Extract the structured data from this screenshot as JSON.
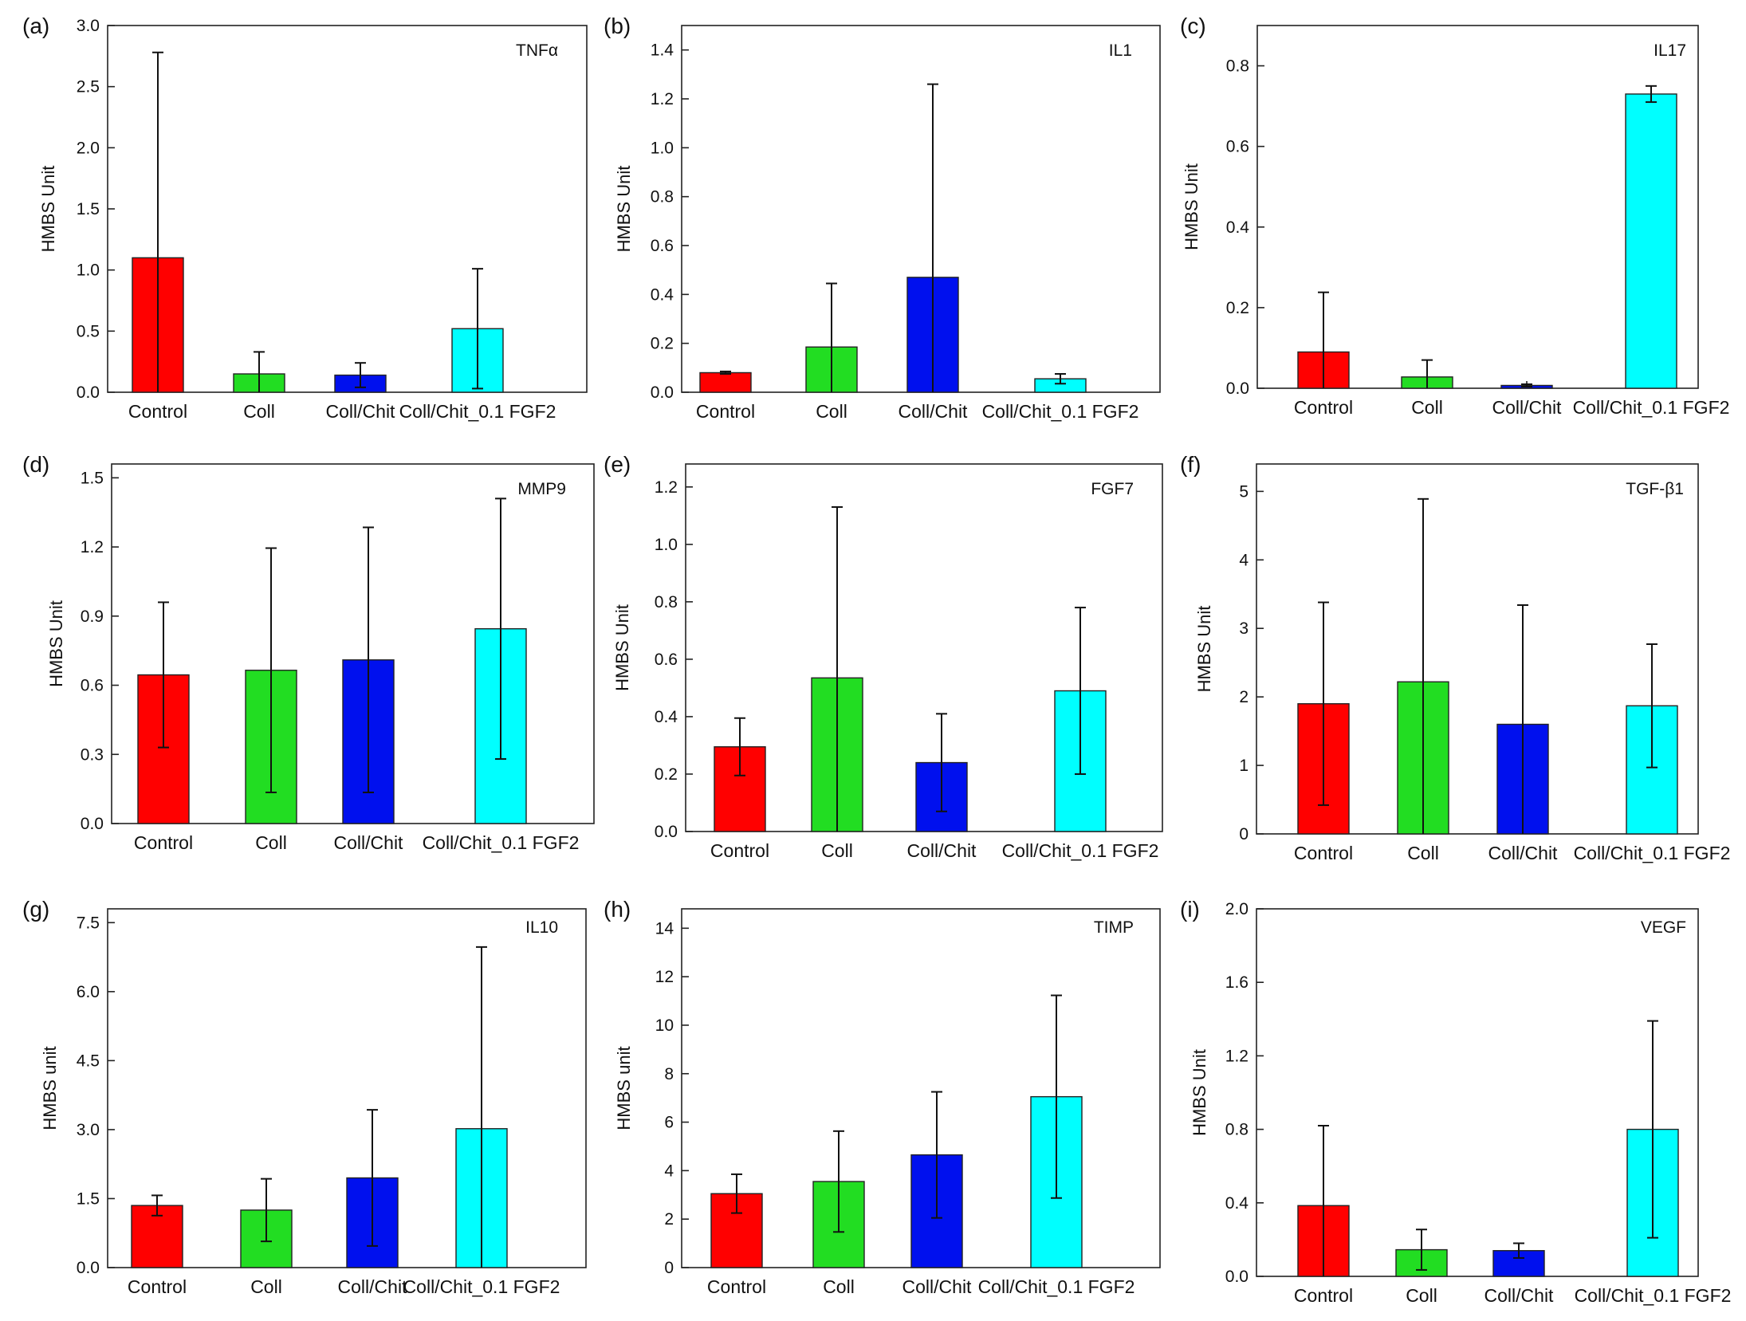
{
  "figure": {
    "categories": [
      "Control",
      "Coll",
      "Coll/Chit",
      "Coll/Chit_0.1 FGF2"
    ],
    "colors": [
      "#ff0000",
      "#22dd22",
      "#0010ee",
      "#00ffff"
    ]
  },
  "chart_data": [
    {
      "type": "bar",
      "letter": "(a)",
      "title": "TNFα",
      "ylabel": "HMBS Unit",
      "ylim": [
        0,
        3.0
      ],
      "ticks": [
        "0.0",
        "0.5",
        "1.0",
        "1.5",
        "2.0",
        "2.5",
        "3.0"
      ],
      "values": [
        1.1,
        0.15,
        0.14,
        0.52
      ],
      "errors": [
        1.68,
        0.18,
        0.1,
        0.49
      ]
    },
    {
      "type": "bar",
      "letter": "(b)",
      "title": "IL1",
      "ylabel": "HMBS Unit",
      "ylim": [
        0,
        1.5
      ],
      "ticks": [
        "0.0",
        "0.2",
        "0.4",
        "0.6",
        "0.8",
        "1.0",
        "1.2",
        "1.4"
      ],
      "values": [
        0.08,
        0.185,
        0.47,
        0.055
      ],
      "errors": [
        0.005,
        0.26,
        0.79,
        0.02
      ]
    },
    {
      "type": "bar",
      "letter": "(c)",
      "title": "IL17",
      "ylabel": "HMBS Unit",
      "ylim": [
        0,
        0.9
      ],
      "ticks": [
        "0.0",
        "0.2",
        "0.4",
        "0.6",
        "0.8"
      ],
      "values": [
        0.09,
        0.028,
        0.007,
        0.73
      ],
      "errors": [
        0.148,
        0.042,
        0.003,
        0.02
      ]
    },
    {
      "type": "bar",
      "letter": "(d)",
      "title": "MMP9",
      "ylabel": "HMBS Unit",
      "ylim": [
        0,
        1.56
      ],
      "ticks": [
        "0.0",
        "0.3",
        "0.6",
        "0.9",
        "1.2",
        "1.5"
      ],
      "values": [
        0.645,
        0.665,
        0.71,
        0.845
      ],
      "errors": [
        0.315,
        0.53,
        0.575,
        0.565
      ]
    },
    {
      "type": "bar",
      "letter": "(e)",
      "title": "FGF7",
      "ylabel": "HMBS Unit",
      "ylim": [
        0,
        1.28
      ],
      "ticks": [
        "0.0",
        "0.2",
        "0.4",
        "0.6",
        "0.8",
        "1.0",
        "1.2"
      ],
      "values": [
        0.295,
        0.535,
        0.24,
        0.49
      ],
      "errors": [
        0.1,
        0.595,
        0.17,
        0.29
      ]
    },
    {
      "type": "bar",
      "letter": "(f)",
      "title": "TGF-β1",
      "ylabel": "HMBS Unit",
      "ylim": [
        0,
        5.4
      ],
      "ticks": [
        "0",
        "1",
        "2",
        "3",
        "4",
        "5"
      ],
      "values": [
        1.9,
        2.22,
        1.6,
        1.87
      ],
      "errors": [
        1.48,
        2.67,
        1.74,
        0.9
      ]
    },
    {
      "type": "bar",
      "letter": "(g)",
      "title": "IL10",
      "ylabel": "HMBS unit",
      "ylim": [
        0,
        7.8
      ],
      "ticks": [
        "0.0",
        "1.5",
        "3.0",
        "4.5",
        "6.0",
        "7.5"
      ],
      "values": [
        1.35,
        1.25,
        1.95,
        3.02
      ],
      "errors": [
        0.22,
        0.68,
        1.48,
        3.95
      ]
    },
    {
      "type": "bar",
      "letter": "(h)",
      "title": "TIMP",
      "ylabel": "HMBS unit",
      "ylim": [
        0,
        14.8
      ],
      "ticks": [
        "0",
        "2",
        "4",
        "6",
        "8",
        "10",
        "12",
        "14"
      ],
      "values": [
        3.05,
        3.55,
        4.65,
        7.05
      ],
      "errors": [
        0.8,
        2.08,
        2.6,
        4.18
      ]
    },
    {
      "type": "bar",
      "letter": "(i)",
      "title": "VEGF",
      "ylabel": "HMBS Unit",
      "ylim": [
        0,
        2.0
      ],
      "ticks": [
        "0.0",
        "0.4",
        "0.8",
        "1.2",
        "1.6",
        "2.0"
      ],
      "values": [
        0.385,
        0.145,
        0.14,
        0.8
      ],
      "errors": [
        0.435,
        0.11,
        0.04,
        0.59
      ]
    }
  ]
}
